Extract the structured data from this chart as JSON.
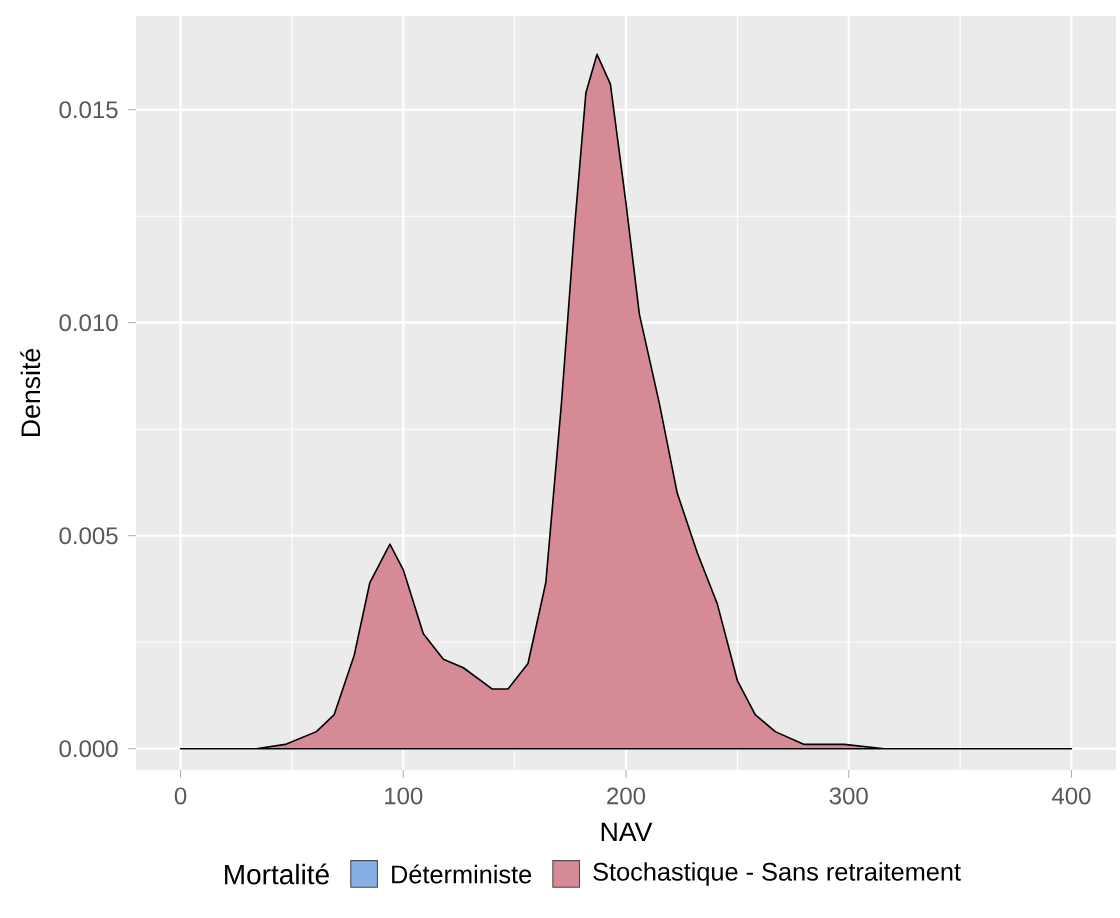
{
  "chart_data": {
    "type": "area",
    "xlabel": "NAV",
    "ylabel": "Densité",
    "legend_title": "Mortalité",
    "legend": "bottom",
    "grid": true,
    "xlim": [
      -20,
      420
    ],
    "ylim": [
      -0.0005,
      0.0172
    ],
    "xticks": [
      0,
      100,
      200,
      300,
      400
    ],
    "yticks": [
      {
        "value": 0,
        "label": "0.000"
      },
      {
        "value": 0.005,
        "label": "0.005"
      },
      {
        "value": 0.01,
        "label": "0.010"
      },
      {
        "value": 0.015,
        "label": "0.015"
      }
    ],
    "series": [
      {
        "name": "Déterministe",
        "color": "#88aee6"
      },
      {
        "name": "Stochastique - Sans retraitement",
        "color": "#d68a96",
        "x": [
          0,
          34,
          47,
          61,
          69,
          78,
          85,
          94,
          100,
          109,
          118,
          127,
          140,
          147,
          156,
          164,
          171,
          177,
          182,
          187,
          193,
          200,
          206,
          215,
          223,
          232,
          241,
          250,
          258,
          267,
          280,
          298,
          316,
          400
        ],
        "values": [
          0,
          0,
          0.0001,
          0.0004,
          0.0008,
          0.0022,
          0.0039,
          0.0048,
          0.0042,
          0.0027,
          0.0021,
          0.0019,
          0.0014,
          0.0014,
          0.002,
          0.0039,
          0.0081,
          0.0123,
          0.0154,
          0.0163,
          0.0156,
          0.0128,
          0.0102,
          0.0081,
          0.006,
          0.0046,
          0.0034,
          0.0016,
          0.0008,
          0.0004,
          0.0001,
          0.0001,
          0,
          0
        ]
      }
    ]
  }
}
